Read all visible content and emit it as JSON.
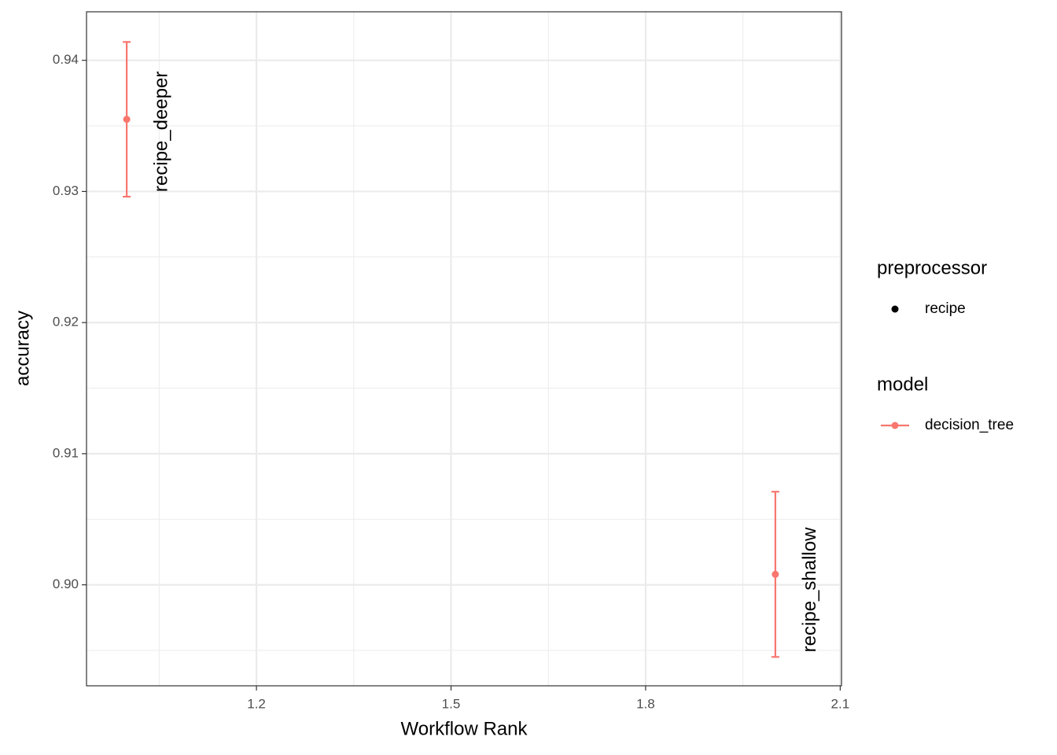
{
  "chart_data": {
    "type": "errorbar",
    "x_label": "Workflow Rank",
    "y_label": "accuracy",
    "x": [
      1,
      2
    ],
    "series": [
      {
        "name": "decision_tree",
        "color": "#F8766D",
        "values": [
          0.9355,
          0.9008
        ],
        "lower": [
          0.9296,
          0.8945
        ],
        "upper": [
          0.9414,
          0.9071
        ],
        "labels": [
          "recipe_deeper",
          "recipe_shallow"
        ]
      }
    ],
    "xlim": [
      0.938,
      2.102
    ],
    "ylim": [
      0.8923,
      0.9437
    ],
    "xticks": [
      1.2,
      1.5,
      1.8,
      2.1
    ],
    "yticks": [
      {
        "value": 0.9,
        "label": "0.90"
      },
      0.91,
      0.92,
      0.93,
      0.94
    ],
    "minor_xticks": [
      1.05,
      1.35,
      1.65,
      1.95
    ],
    "minor_yticks": [
      0.895,
      0.905,
      0.915,
      0.925,
      0.935
    ],
    "grid": true,
    "legend": [
      {
        "title": "preprocessor",
        "items": [
          "recipe"
        ]
      },
      {
        "title": "model",
        "items": [
          "decision_tree"
        ]
      }
    ]
  }
}
